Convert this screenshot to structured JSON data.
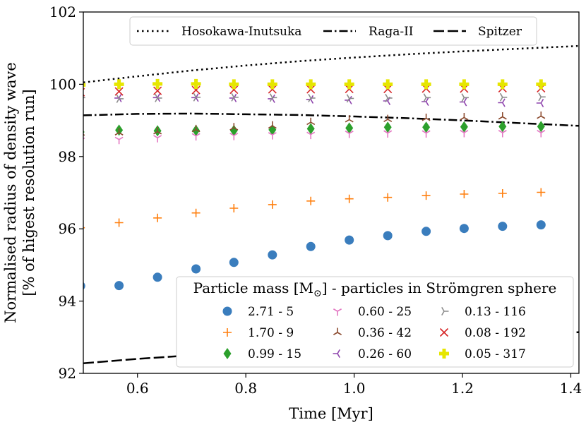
{
  "chart_data": {
    "type": "scatter",
    "xlabel": "Time [Myr]",
    "ylabel": [
      "Normalised radius of density wave",
      "[% of higest resolution run]"
    ],
    "xlim": [
      0.5,
      1.415
    ],
    "ylim": [
      92,
      102
    ],
    "xticks": [
      0.6,
      0.8,
      1.0,
      1.2,
      1.4
    ],
    "yticks": [
      92,
      94,
      96,
      98,
      100,
      102
    ],
    "xtick_labels": [
      "0.6",
      "0.8",
      "1.0",
      "1.2",
      "1.4"
    ],
    "ytick_labels": [
      "92",
      "94",
      "96",
      "98",
      "100",
      "102"
    ],
    "x": [
      0.495,
      0.566,
      0.637,
      0.708,
      0.778,
      0.849,
      0.92,
      0.991,
      1.062,
      1.133,
      1.203,
      1.274,
      1.345
    ],
    "legend_title": "Particle mass [M⊙] - particles in Strömgren sphere",
    "legend_title_parts": {
      "before": "Particle mass [M",
      "sub": "⊙",
      "after": "] - particles in Strömgren sphere"
    },
    "series": [
      {
        "name": "2.71 - 5",
        "marker": "circle",
        "color": "#3a7dbd",
        "values": [
          94.42,
          94.43,
          94.66,
          94.89,
          95.07,
          95.28,
          95.51,
          95.69,
          95.81,
          95.93,
          96.01,
          96.07,
          96.11
        ]
      },
      {
        "name": "1.70 - 9",
        "marker": "plus",
        "color": "#ff7f0e",
        "values": [
          96.03,
          96.17,
          96.3,
          96.44,
          96.57,
          96.67,
          96.77,
          96.83,
          96.87,
          96.92,
          96.96,
          96.98,
          97.01
        ]
      },
      {
        "name": "0.99 - 15",
        "marker": "diamond",
        "color": "#2ca02c",
        "values": [
          98.68,
          98.73,
          98.71,
          98.72,
          98.72,
          98.74,
          98.77,
          98.79,
          98.81,
          98.81,
          98.82,
          98.83,
          98.83
        ]
      },
      {
        "name": "0.60 - 25",
        "marker": "tri_down",
        "color": "#e377c2",
        "values": [
          98.45,
          98.47,
          98.52,
          98.57,
          98.58,
          98.6,
          98.61,
          98.64,
          98.65,
          98.65,
          98.66,
          98.66,
          98.66
        ]
      },
      {
        "name": "0.36 - 42",
        "marker": "tri_up",
        "color": "#8c4b2f",
        "values": [
          98.65,
          98.66,
          98.69,
          98.75,
          98.8,
          98.85,
          98.95,
          99.02,
          99.03,
          99.06,
          99.08,
          99.1,
          99.12
        ]
      },
      {
        "name": "0.26 - 60",
        "marker": "tri_left",
        "color": "#8e44ad",
        "values": [
          99.55,
          99.62,
          99.63,
          99.63,
          99.62,
          99.6,
          99.58,
          99.56,
          99.54,
          99.52,
          99.51,
          99.49,
          99.48
        ]
      },
      {
        "name": "0.13 - 116",
        "marker": "tri_right",
        "color": "#8c8c8c",
        "values": [
          99.63,
          99.6,
          99.62,
          99.64,
          99.64,
          99.63,
          99.62,
          99.61,
          99.62,
          99.63,
          99.63,
          99.64,
          99.65
        ]
      },
      {
        "name": "0.08 - 192",
        "marker": "x",
        "color": "#d62728",
        "values": [
          99.78,
          99.8,
          99.82,
          99.84,
          99.85,
          99.86,
          99.86,
          99.87,
          99.87,
          99.88,
          99.88,
          99.89,
          99.89
        ]
      },
      {
        "name": "0.05 - 317",
        "marker": "plus_filled",
        "color": "#e6e600",
        "values": [
          99.98,
          100.0,
          100.01,
          100.01,
          100.0,
          100.0,
          100.0,
          100.0,
          100.0,
          100.0,
          100.0,
          100.0,
          100.0
        ]
      }
    ],
    "lines": [
      {
        "name": "Hosokawa-Inutsuka",
        "style": "dotted",
        "x": [
          0.5,
          0.6,
          0.7,
          0.8,
          0.9,
          1.0,
          1.1,
          1.2,
          1.3,
          1.415
        ],
        "y": [
          100.05,
          100.22,
          100.38,
          100.52,
          100.64,
          100.74,
          100.83,
          100.91,
          100.98,
          101.06
        ]
      },
      {
        "name": "Raga-II",
        "style": "dashdot",
        "x": [
          0.5,
          0.6,
          0.7,
          0.8,
          0.9,
          1.0,
          1.1,
          1.2,
          1.3,
          1.415
        ],
        "y": [
          99.14,
          99.18,
          99.19,
          99.17,
          99.15,
          99.11,
          99.06,
          99.0,
          98.93,
          98.85
        ]
      },
      {
        "name": "Spitzer",
        "style": "dashed",
        "x": [
          0.5,
          0.6,
          0.7,
          0.8,
          0.9,
          1.0,
          1.1,
          1.2,
          1.3,
          1.415
        ],
        "y": [
          92.28,
          92.4,
          92.5,
          92.6,
          92.68,
          92.76,
          92.84,
          92.93,
          93.03,
          93.14
        ]
      }
    ]
  }
}
